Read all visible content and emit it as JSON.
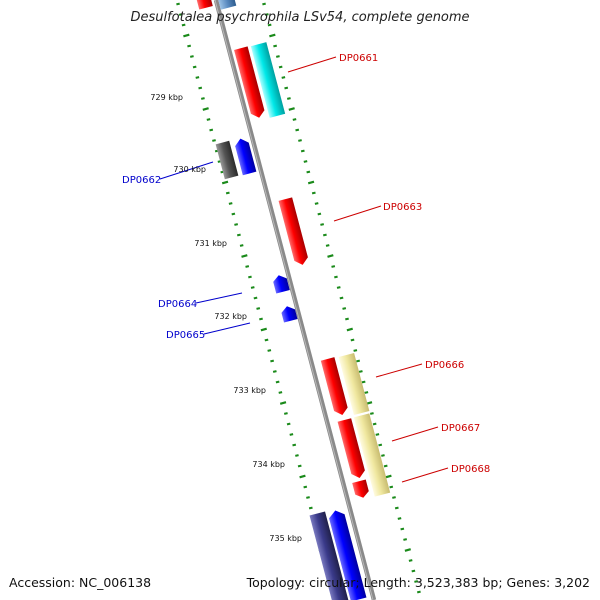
{
  "title": "Desulfotalea psychrophila LSv54, complete genome",
  "accession": "Accession: NC_006138",
  "topology": "Topology: circular; Length: 3,523,383 bp; Genes: 3,202",
  "colors": {
    "forward_gene": "#ff0000",
    "reverse_gene": "#0000ff",
    "cyan_feature": "#00e8e8",
    "yellow_feature": "#f0e8a0",
    "gray_feature": "#555555",
    "navy_feature": "#3a3a8a",
    "backbone": "#8a8a8a",
    "tick": "#1a8a1a",
    "forward_label": "#cc0000",
    "reverse_label": "#0000cc"
  },
  "scale_labels": [
    "729 kbp",
    "730 kbp",
    "731 kbp",
    "732 kbp",
    "733 kbp",
    "734 kbp",
    "735 kbp"
  ],
  "gene_labels": [
    {
      "name": "DP0661",
      "strand": "forward"
    },
    {
      "name": "DP0662",
      "strand": "reverse"
    },
    {
      "name": "DP0663",
      "strand": "forward"
    },
    {
      "name": "DP0664",
      "strand": "reverse"
    },
    {
      "name": "DP0665",
      "strand": "reverse"
    },
    {
      "name": "DP0666",
      "strand": "forward"
    },
    {
      "name": "DP0667",
      "strand": "forward"
    },
    {
      "name": "DP0668",
      "strand": "forward"
    }
  ]
}
